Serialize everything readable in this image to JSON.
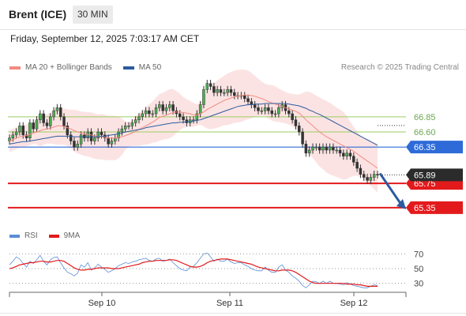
{
  "header": {
    "instrument": "Brent (ICE)",
    "timeframe": "30 MIN",
    "datetime": "Friday, September 12, 2025 7:03:17 AM CET"
  },
  "legend": {
    "ma20_label": "MA 20 + Bollinger Bands",
    "ma20_color": "#f28b82",
    "ma50_label": "MA 50",
    "ma50_color": "#2c5b9e",
    "credit": "Research © 2025 Trading Central"
  },
  "rsi_legend": {
    "rsi_label": "RSI",
    "rsi_color": "#5b8dd6",
    "ma9_label": "9MA",
    "ma9_color": "#e31a1c"
  },
  "chart_data": [
    {
      "type": "line",
      "name": "price-panel",
      "ylim": [
        65.1,
        67.5
      ],
      "x_ticks": [
        "Sep 10",
        "Sep 11",
        "Sep 12"
      ],
      "current_price": 65.89,
      "levels": [
        {
          "value": 66.85,
          "label": "66.85",
          "style": "resistance",
          "color": "#9acd60"
        },
        {
          "value": 66.6,
          "label": "66.60",
          "style": "resistance",
          "color": "#9acd60"
        },
        {
          "value": 66.35,
          "label": "66.35",
          "style": "pivot",
          "color": "#2e6bd8"
        },
        {
          "value": 65.75,
          "label": "65.75",
          "style": "support",
          "color": "#e31a1c"
        },
        {
          "value": 65.35,
          "label": "65.35",
          "style": "support",
          "color": "#e31a1c"
        }
      ],
      "close_series": [
        66.5,
        66.55,
        66.6,
        66.7,
        66.55,
        66.5,
        66.75,
        66.65,
        66.8,
        66.9,
        66.75,
        66.7,
        66.85,
        66.95,
        67.0,
        66.85,
        66.7,
        66.55,
        66.45,
        66.35,
        66.4,
        66.55,
        66.5,
        66.6,
        66.45,
        66.5,
        66.6,
        66.55,
        66.5,
        66.4,
        66.45,
        66.5,
        66.6,
        66.65,
        66.7,
        66.7,
        66.75,
        66.8,
        66.85,
        66.9,
        66.95,
        66.9,
        66.9,
        67.0,
        67.05,
        66.95,
        67.0,
        67.05,
        66.95,
        66.9,
        66.85,
        66.8,
        66.75,
        66.8,
        66.8,
        66.9,
        67.05,
        67.3,
        67.4,
        67.35,
        67.25,
        67.3,
        67.25,
        67.25,
        67.3,
        67.25,
        67.2,
        67.2,
        67.2,
        67.15,
        67.1,
        67.05,
        67.0,
        66.95,
        66.95,
        67.0,
        66.95,
        66.9,
        66.9,
        67.0,
        67.05,
        66.95,
        66.9,
        66.8,
        66.7,
        66.6,
        66.4,
        66.25,
        66.3,
        66.35,
        66.35,
        66.3,
        66.35,
        66.3,
        66.35,
        66.3,
        66.3,
        66.25,
        66.2,
        66.25,
        66.2,
        66.1,
        66.0,
        65.9,
        65.85,
        65.8,
        65.85,
        65.9,
        65.89
      ],
      "ma20_series": [
        66.45,
        66.47,
        66.5,
        66.52,
        66.53,
        66.54,
        66.56,
        66.58,
        66.6,
        66.62,
        66.64,
        66.65,
        66.66,
        66.68,
        66.7,
        66.7,
        66.69,
        66.67,
        66.65,
        66.62,
        66.6,
        66.58,
        66.57,
        66.56,
        66.55,
        66.53,
        66.52,
        66.52,
        66.51,
        66.5,
        66.5,
        66.5,
        66.51,
        66.52,
        66.54,
        66.56,
        66.58,
        66.61,
        66.64,
        66.67,
        66.7,
        66.73,
        66.76,
        66.8,
        66.84,
        66.86,
        66.88,
        66.9,
        66.92,
        66.93,
        66.93,
        66.92,
        66.91,
        66.9,
        66.88,
        66.88,
        66.9,
        66.93,
        66.97,
        67.0,
        67.03,
        67.06,
        67.09,
        67.12,
        67.14,
        67.16,
        67.18,
        67.19,
        67.2,
        67.21,
        67.21,
        67.2,
        67.19,
        67.17,
        67.15,
        67.13,
        67.1,
        67.08,
        67.06,
        67.04,
        67.02,
        67.0,
        66.98,
        66.96,
        66.94,
        66.91,
        66.86,
        66.8,
        66.75,
        66.7,
        66.65,
        66.6,
        66.56,
        66.52,
        66.49,
        66.46,
        66.43,
        66.4,
        66.37,
        66.34,
        66.31,
        66.28,
        66.24,
        66.2,
        66.16,
        66.12,
        66.08,
        66.04,
        66.0
      ],
      "ma50_series": [
        66.4,
        66.41,
        66.42,
        66.43,
        66.44,
        66.44,
        66.45,
        66.46,
        66.47,
        66.48,
        66.49,
        66.5,
        66.51,
        66.52,
        66.53,
        66.53,
        66.53,
        66.53,
        66.53,
        66.52,
        66.52,
        66.52,
        66.52,
        66.52,
        66.52,
        66.52,
        66.52,
        66.53,
        66.53,
        66.54,
        66.55,
        66.56,
        66.57,
        66.58,
        66.6,
        66.61,
        66.62,
        66.63,
        66.64,
        66.65,
        66.67,
        66.68,
        66.69,
        66.7,
        66.71,
        66.72,
        66.73,
        66.74,
        66.75,
        66.75,
        66.76,
        66.76,
        66.77,
        66.77,
        66.78,
        66.79,
        66.8,
        66.82,
        66.84,
        66.86,
        66.88,
        66.9,
        66.92,
        66.94,
        66.96,
        66.98,
        67.0,
        67.02,
        67.03,
        67.04,
        67.05,
        67.05,
        67.06,
        67.06,
        67.06,
        67.07,
        67.07,
        67.07,
        67.07,
        67.07,
        67.07,
        67.07,
        67.06,
        67.05,
        67.04,
        67.03,
        67.01,
        66.99,
        66.96,
        66.94,
        66.91,
        66.89,
        66.86,
        66.83,
        66.8,
        66.77,
        66.74,
        66.71,
        66.68,
        66.65,
        66.62,
        66.59,
        66.56,
        66.53,
        66.5,
        66.47,
        66.44,
        66.41,
        66.38
      ]
    },
    {
      "type": "line",
      "name": "rsi-panel",
      "ylim": [
        20,
        80
      ],
      "y_ticks": [
        "70",
        "50",
        "30"
      ],
      "series": [
        {
          "name": "RSI",
          "values": [
            55,
            60,
            66,
            63,
            57,
            52,
            60,
            57,
            62,
            68,
            60,
            55,
            62,
            65,
            66,
            58,
            51,
            45,
            43,
            40,
            44,
            55,
            52,
            58,
            48,
            51,
            56,
            52,
            49,
            45,
            47,
            50,
            54,
            56,
            58,
            57,
            59,
            60,
            62,
            63,
            64,
            61,
            60,
            63,
            64,
            60,
            61,
            63,
            58,
            54,
            50,
            48,
            47,
            52,
            53,
            58,
            64,
            70,
            71,
            66,
            60,
            63,
            60,
            60,
            63,
            59,
            57,
            58,
            58,
            55,
            53,
            50,
            48,
            47,
            47,
            52,
            48,
            45,
            45,
            52,
            55,
            48,
            45,
            40,
            37,
            33,
            27,
            24,
            28,
            33,
            32,
            30,
            33,
            30,
            33,
            30,
            30,
            29,
            28,
            31,
            29,
            27,
            26,
            25,
            24,
            24,
            26,
            28,
            27
          ]
        },
        {
          "name": "9MA",
          "values": [
            50,
            51,
            53,
            55,
            56,
            57,
            58,
            58,
            59,
            60,
            60,
            59,
            59,
            60,
            61,
            61,
            60,
            57,
            54,
            51,
            49,
            48,
            48,
            49,
            49,
            50,
            51,
            51,
            51,
            51,
            50,
            50,
            50,
            51,
            52,
            53,
            54,
            55,
            56,
            58,
            59,
            60,
            60,
            61,
            61,
            61,
            61,
            62,
            62,
            61,
            59,
            57,
            55,
            53,
            52,
            52,
            53,
            55,
            58,
            60,
            61,
            62,
            63,
            63,
            63,
            62,
            61,
            60,
            59,
            58,
            57,
            56,
            54,
            52,
            51,
            50,
            49,
            48,
            47,
            47,
            48,
            48,
            48,
            47,
            45,
            42,
            39,
            36,
            33,
            31,
            30,
            30,
            30,
            30,
            30,
            30,
            30,
            30,
            30,
            29,
            29,
            29,
            28,
            28,
            27,
            26,
            26,
            26,
            26
          ]
        }
      ]
    }
  ]
}
